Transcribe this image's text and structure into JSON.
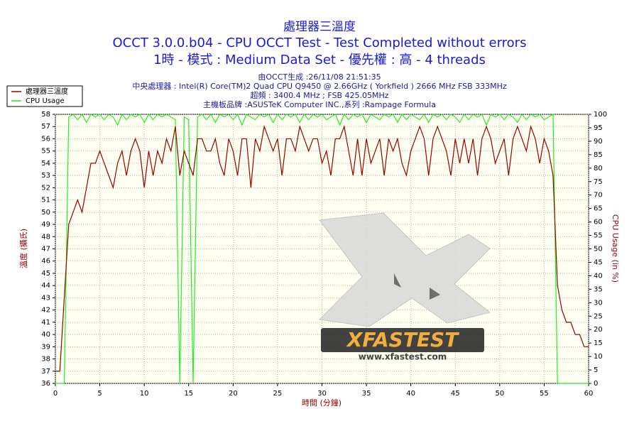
{
  "chart_data": {
    "type": "line",
    "title": "處理器三溫度",
    "subtitle": [
      "OCCT 3.0.0.b04 - CPU OCCT Test - Test Completed without errors",
      "1時 - 模式 : Medium Data Set - 優先權 : 高 - 4 threads"
    ],
    "info": [
      "由OCCT生成 :26/11/08 21:51:35",
      "中央處理器 : Intel(R) Core(TM)2 Quad CPU Q9450 @ 2.66GHz ( Yorkfield ) 2666 MHz FSB 333MHz",
      "超頻 : 3400.4 MHz ; FSB 425.05MHz",
      "主機板品牌 :ASUSTeK Computer INC.,系列 :Rampage Formula"
    ],
    "xlabel": "時間 (分鐘)",
    "ylabel": "溫度 (攝氏)",
    "y2label": "CPU Usage (in %)",
    "legend": "upper left",
    "grid": true,
    "xlim": [
      0,
      60
    ],
    "ylim": [
      36,
      58
    ],
    "y2lim": [
      0,
      100
    ],
    "xticks": [
      0,
      5,
      10,
      15,
      20,
      25,
      30,
      35,
      40,
      45,
      50,
      55,
      60
    ],
    "yticks": [
      36,
      37,
      38,
      39,
      40,
      41,
      42,
      43,
      44,
      45,
      46,
      47,
      48,
      49,
      50,
      51,
      52,
      53,
      54,
      55,
      56,
      57,
      58
    ],
    "y2ticks": [
      0,
      5,
      10,
      15,
      20,
      25,
      30,
      35,
      40,
      45,
      50,
      55,
      60,
      65,
      70,
      75,
      80,
      85,
      90,
      95,
      100
    ],
    "x": [
      0,
      0.5,
      1,
      1.5,
      2,
      2.5,
      3,
      3.5,
      4,
      4.5,
      5,
      5.5,
      6,
      6.5,
      7,
      7.5,
      8,
      8.5,
      9,
      9.5,
      10,
      10.5,
      11,
      11.5,
      12,
      12.5,
      13,
      13.5,
      14,
      14.5,
      15,
      15.5,
      16,
      16.5,
      17,
      17.5,
      18,
      18.5,
      19,
      19.5,
      20,
      20.5,
      21,
      21.5,
      22,
      22.5,
      23,
      23.5,
      24,
      24.5,
      25,
      25.5,
      26,
      26.5,
      27,
      27.5,
      28,
      28.5,
      29,
      29.5,
      30,
      30.5,
      31,
      31.5,
      32,
      32.5,
      33,
      33.5,
      34,
      34.5,
      35,
      35.5,
      36,
      36.5,
      37,
      37.5,
      38,
      38.5,
      39,
      39.5,
      40,
      40.5,
      41,
      41.5,
      42,
      42.5,
      43,
      43.5,
      44,
      44.5,
      45,
      45.5,
      46,
      46.5,
      47,
      47.5,
      48,
      48.5,
      49,
      49.5,
      50,
      50.5,
      51,
      51.5,
      52,
      52.5,
      53,
      53.5,
      54,
      54.5,
      55,
      55.5,
      56,
      56.5,
      57,
      57.5,
      58,
      58.5,
      59,
      59.5,
      60
    ],
    "series": [
      {
        "name": "處理器三溫度",
        "color": "#990000",
        "axis": "y",
        "values": [
          37,
          37,
          43,
          49,
          50,
          51,
          50,
          52,
          54,
          54,
          55,
          54,
          53,
          52,
          54,
          55,
          53,
          55,
          56,
          55,
          52,
          55,
          53,
          55,
          54,
          56,
          55,
          57,
          53,
          55,
          54,
          53,
          56,
          56,
          55,
          55,
          56,
          54,
          53,
          56,
          55,
          53,
          56,
          56,
          52,
          56,
          55,
          57,
          56,
          55,
          56,
          53,
          56,
          56,
          55,
          57,
          56,
          55,
          56,
          56,
          54,
          55,
          53,
          56,
          56,
          57,
          55,
          53,
          56,
          53,
          56,
          54,
          55,
          56,
          53,
          56,
          55,
          56,
          54,
          53,
          55,
          56,
          57,
          56,
          53,
          56,
          57,
          56,
          55,
          53,
          56,
          54,
          56,
          54,
          56,
          53,
          56,
          57,
          56,
          54,
          55,
          56,
          53,
          56,
          57,
          56,
          55,
          57,
          56,
          54,
          56,
          55,
          53,
          44,
          42,
          41,
          41,
          40,
          40,
          39,
          39
        ]
      },
      {
        "name": "CPU Usage",
        "color": "#22ee22",
        "axis": "y2",
        "values": [
          0,
          0,
          0,
          99,
          100,
          98,
          100,
          97,
          100,
          99,
          100,
          98,
          100,
          99,
          96,
          100,
          98,
          100,
          99,
          100,
          97,
          100,
          98,
          100,
          99,
          100,
          99,
          98,
          0,
          99,
          98,
          0,
          99,
          100,
          98,
          100,
          97,
          100,
          99,
          100,
          98,
          100,
          96,
          100,
          99,
          98,
          100,
          99,
          100,
          97,
          100,
          98,
          100,
          99,
          100,
          97,
          100,
          98,
          100,
          99,
          100,
          98,
          99,
          100,
          96,
          100,
          98,
          100,
          99,
          100,
          97,
          100,
          99,
          98,
          100,
          99,
          100,
          97,
          100,
          98,
          100,
          99,
          98,
          100,
          97,
          100,
          99,
          100,
          98,
          100,
          99,
          97,
          100,
          98,
          100,
          99,
          100,
          96,
          100,
          99,
          100,
          98,
          100,
          99,
          97,
          100,
          98,
          100,
          99,
          100,
          98,
          99,
          100,
          0,
          0,
          0,
          0,
          0,
          0,
          0,
          0
        ]
      }
    ]
  },
  "watermark": {
    "text": "XFASTEST",
    "url": "www.xfastest.com"
  }
}
